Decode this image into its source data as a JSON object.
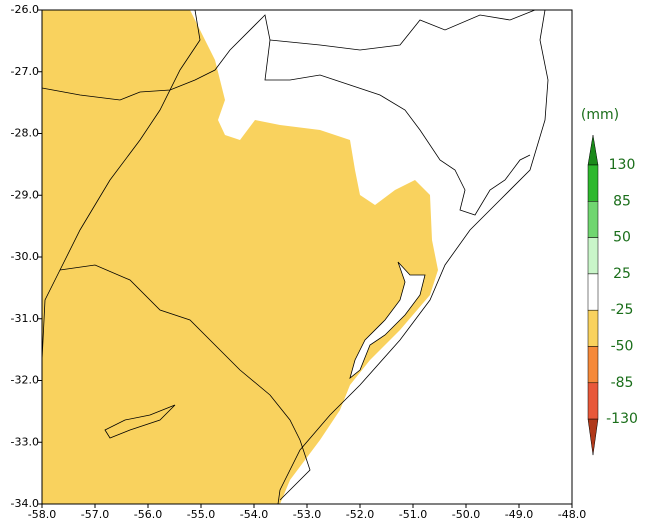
{
  "map": {
    "xlim": [
      -58,
      -48
    ],
    "ylim": [
      -34,
      -26
    ],
    "xticks": [
      {
        "value": -58,
        "label": "-58.0"
      },
      {
        "value": -57,
        "label": "-57.0"
      },
      {
        "value": -56,
        "label": "-56.0"
      },
      {
        "value": -55,
        "label": "-55.0"
      },
      {
        "value": -54,
        "label": "-54.0"
      },
      {
        "value": -53,
        "label": "-53.0"
      },
      {
        "value": -52,
        "label": "-52.0"
      },
      {
        "value": -51,
        "label": "-51.0"
      },
      {
        "value": -50,
        "label": "-50.0"
      },
      {
        "value": -49,
        "label": "-49.0"
      },
      {
        "value": -48,
        "label": "-48.0"
      }
    ],
    "yticks": [
      {
        "value": -26,
        "label": "-26.0"
      },
      {
        "value": -27,
        "label": "-27.0"
      },
      {
        "value": -28,
        "label": "-28.0"
      },
      {
        "value": -29,
        "label": "-29.0"
      },
      {
        "value": -30,
        "label": "-30.0"
      },
      {
        "value": -31,
        "label": "-31.0"
      },
      {
        "value": -32,
        "label": "-32.0"
      },
      {
        "value": -33,
        "label": "-33.0"
      },
      {
        "value": -34,
        "label": "-34.0"
      }
    ],
    "colorbar": {
      "unit": "(mm)",
      "bounds": [
        130,
        85,
        50,
        25,
        -25,
        -50,
        -85,
        -130
      ],
      "colors": [
        "#1b8a1b",
        "#2eb82e",
        "#70d670",
        "#c9f5c9",
        "#ffffff",
        "#f9d25e",
        "#f5893a",
        "#e8583a",
        "#b0381a"
      ]
    }
  }
}
